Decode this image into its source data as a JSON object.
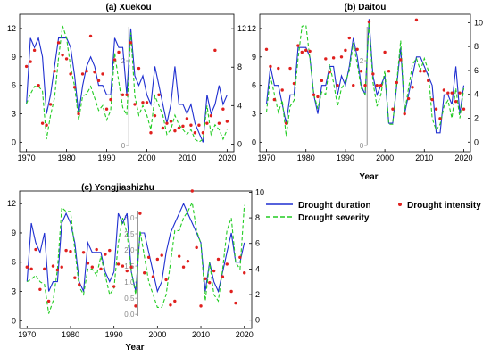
{
  "figure": {
    "legend": {
      "duration_label": "Drought duration",
      "intensity_label": "Drought intensity",
      "severity_label": "Drought severity"
    },
    "colors": {
      "duration": "#1f2fd0",
      "severity": "#22cc22",
      "intensity": "#e0201e",
      "divider": "#8a8a8a"
    }
  },
  "chart_data": [
    {
      "type": "line",
      "title": "(a) Xuekou",
      "xlabel": "",
      "x_ticks": [
        1970,
        1980,
        1990,
        2000,
        2010,
        2020
      ],
      "left_yticks": [
        0,
        3,
        6,
        9,
        12
      ],
      "left_ylim": [
        -1,
        13.5
      ],
      "right_yticks": [
        0,
        4,
        8,
        12
      ],
      "right_ylim": [
        -0.8,
        13.5
      ],
      "inset": {
        "ticks": [
          0,
          2
        ],
        "divider_year": 1995.5,
        "range": [
          0,
          2.8
        ]
      },
      "x": [
        1970,
        1971,
        1972,
        1973,
        1974,
        1975,
        1976,
        1977,
        1978,
        1979,
        1980,
        1981,
        1982,
        1983,
        1984,
        1985,
        1986,
        1987,
        1988,
        1989,
        1990,
        1991,
        1992,
        1993,
        1994,
        1995,
        1996,
        1997,
        1998,
        1999,
        2000,
        2001,
        2002,
        2003,
        2004,
        2005,
        2006,
        2007,
        2008,
        2009,
        2010,
        2011,
        2012,
        2013,
        2014,
        2015,
        2016,
        2017,
        2018,
        2019,
        2020
      ],
      "series": [
        {
          "name": "Drought duration",
          "axis": "left",
          "values": [
            4,
            11,
            10,
            11,
            9,
            3,
            5,
            8,
            11,
            11,
            11,
            10,
            7,
            3,
            6,
            8,
            9,
            8,
            6,
            6,
            5,
            5,
            11,
            10,
            10,
            5,
            12,
            7,
            6,
            7,
            5,
            4,
            8,
            6,
            4,
            2,
            4,
            8,
            4,
            4,
            3,
            4,
            2,
            1,
            0,
            5,
            3,
            4,
            6,
            4,
            5
          ]
        },
        {
          "name": "Drought severity",
          "axis": "right",
          "values": [
            4.2,
            5.2,
            6,
            6,
            5.5,
            0.5,
            3,
            4.8,
            9,
            12.3,
            11,
            8,
            6,
            2.5,
            5,
            5.2,
            6,
            4.8,
            3.5,
            4,
            2.5,
            3.5,
            9.5,
            6.5,
            3.8,
            3,
            11.6,
            5,
            3,
            4,
            3,
            1.5,
            5,
            4,
            3,
            1,
            1.5,
            3,
            2,
            1.5,
            1,
            1.5,
            0.5,
            0.2,
            0.5,
            4,
            1,
            2,
            1.5,
            0.5,
            1.5
          ]
        },
        {
          "name": "Drought intensity",
          "axis": "left",
          "values": [
            8,
            8.5,
            9.7,
            6,
            2,
            1.8,
            4,
            7.5,
            10.5,
            9.2,
            8.8,
            7.2,
            5.8,
            3,
            7.2,
            7.5,
            11.2,
            7.4,
            6.5,
            7.2,
            3.5,
            4.5,
            8.7,
            9.5,
            5,
            5,
            10.5,
            4,
            7.8,
            4.2,
            4.2,
            1,
            2.8,
            5,
            1.5,
            2,
            2.2,
            1.2,
            1.5,
            1.7,
            2.5,
            1.8,
            1,
            1.8,
            1,
            2,
            2.8,
            9.7,
            2,
            3.5,
            2.2
          ]
        }
      ]
    },
    {
      "type": "line",
      "title": "(b) Daitou",
      "xlabel": "Year",
      "x_ticks": [
        1970,
        1980,
        1990,
        2000,
        2010,
        2020
      ],
      "left_yticks": [
        0,
        3,
        6,
        9,
        12
      ],
      "left_ylim": [
        -1,
        13.5
      ],
      "right_yticks": [
        0,
        2,
        4,
        6,
        8,
        10
      ],
      "right_ylim": [
        -0.8,
        10.7
      ],
      "inset": {
        "ticks": [
          0,
          2
        ],
        "divider_year": 1995.5,
        "range": [
          0,
          2.8
        ]
      },
      "x": [
        1970,
        1971,
        1972,
        1973,
        1974,
        1975,
        1976,
        1977,
        1978,
        1979,
        1980,
        1981,
        1982,
        1983,
        1984,
        1985,
        1986,
        1987,
        1988,
        1989,
        1990,
        1991,
        1992,
        1993,
        1994,
        1995,
        1996,
        1997,
        1998,
        1999,
        2000,
        2001,
        2002,
        2003,
        2004,
        2005,
        2006,
        2007,
        2008,
        2009,
        2010,
        2011,
        2012,
        2013,
        2014,
        2015,
        2016,
        2017,
        2018,
        2019,
        2020
      ],
      "series": [
        {
          "name": "Drought duration",
          "axis": "left",
          "values": [
            4,
            8,
            6,
            6,
            4,
            2,
            5,
            5,
            10,
            10,
            10,
            9,
            5,
            3,
            6,
            6,
            8,
            8,
            5,
            7,
            6,
            8,
            11,
            9,
            6,
            5,
            13,
            7,
            5,
            6,
            7,
            2,
            2,
            6,
            10,
            3,
            5,
            7,
            9,
            9,
            8,
            7,
            6,
            1,
            1,
            5,
            5,
            4,
            8,
            3,
            6
          ]
        },
        {
          "name": "Drought severity",
          "axis": "right",
          "values": [
            2.5,
            5.5,
            4,
            2.5,
            3.5,
            0.5,
            3,
            3.5,
            7,
            9.7,
            9.8,
            7,
            4,
            2.8,
            4.2,
            4,
            6.5,
            5,
            3,
            4.5,
            5,
            6,
            8.3,
            6.5,
            4.5,
            4,
            10,
            5,
            3,
            4,
            6,
            1.5,
            1.5,
            5,
            8.5,
            2.5,
            4.5,
            6.5,
            7,
            6,
            7,
            6,
            2,
            1,
            1.5,
            3,
            3.5,
            2,
            4.5,
            2,
            4.5
          ]
        },
        {
          "name": "Drought intensity",
          "axis": "left",
          "values": [
            9.8,
            8,
            4.5,
            7.8,
            5.5,
            2,
            7.8,
            6.2,
            10.2,
            9.5,
            9.7,
            9.6,
            5,
            4.8,
            6.5,
            8.8,
            7.4,
            8.9,
            6,
            9,
            9.7,
            11,
            6,
            9.8,
            7.5,
            6,
            12.7,
            7.2,
            6,
            6,
            9.5,
            7.5,
            3.5,
            6.3,
            8.7,
            3,
            4.6,
            5.8,
            12.9,
            7.5,
            7.5,
            6.5,
            4.5,
            3.5,
            2.5,
            5.5,
            5.2,
            5.2,
            4.3,
            5.2,
            3.5
          ]
        }
      ]
    },
    {
      "type": "line",
      "title": "(c) Yongjiashizhu",
      "xlabel": "Year",
      "x_ticks": [
        1970,
        1980,
        1990,
        2000,
        2010,
        2020
      ],
      "left_yticks": [
        0,
        3,
        6,
        9,
        12
      ],
      "left_ylim": [
        -0.8,
        13.3
      ],
      "right_yticks": [
        0,
        2,
        4,
        6,
        8,
        10
      ],
      "right_ylim": [
        -0.65,
        10.1
      ],
      "inset": {
        "ticks": [
          0.0,
          0.5,
          1.0,
          1.5,
          2.0,
          2.5,
          3.0
        ],
        "divider_year": 1995.5,
        "range": [
          -0.05,
          3.22
        ]
      },
      "x": [
        1970,
        1971,
        1972,
        1973,
        1974,
        1975,
        1976,
        1977,
        1978,
        1979,
        1980,
        1981,
        1982,
        1983,
        1984,
        1985,
        1986,
        1987,
        1988,
        1989,
        1990,
        1991,
        1992,
        1993,
        1994,
        1995,
        1996,
        1997,
        1998,
        1999,
        2000,
        2001,
        2002,
        2003,
        2004,
        2005,
        2006,
        2007,
        2008,
        2009,
        2010,
        2011,
        2012,
        2013,
        2014,
        2015,
        2016,
        2017,
        2018,
        2019,
        2020
      ],
      "series": [
        {
          "name": "Drought duration",
          "axis": "left",
          "values": [
            4,
            10,
            8,
            7,
            9,
            3,
            4,
            4,
            10,
            11,
            10,
            8,
            4,
            3,
            8,
            7,
            7,
            7,
            5,
            4,
            5,
            11,
            10,
            11,
            5,
            3,
            9,
            9,
            7,
            5,
            3,
            4,
            7,
            9,
            10,
            11,
            12,
            11,
            10,
            9,
            8,
            3,
            6,
            4,
            3,
            5,
            7,
            9,
            6,
            6,
            8
          ]
        },
        {
          "name": "Drought severity",
          "axis": "right",
          "values": [
            3,
            3.2,
            3.5,
            3,
            2.8,
            0.5,
            1.5,
            4,
            8.8,
            8.5,
            8.5,
            5.5,
            2.6,
            2,
            4,
            4,
            3.5,
            5,
            3.5,
            2,
            2.5,
            6,
            8,
            6.8,
            3.8,
            2,
            7,
            5,
            3,
            2,
            1,
            1,
            2,
            4.5,
            7,
            7,
            8,
            8.5,
            9.2,
            7,
            6,
            1.5,
            4.5,
            2,
            1.5,
            4,
            7,
            8,
            4.5,
            4,
            9
          ]
        },
        {
          "name": "Drought intensity",
          "axis": "left",
          "values": [
            5.5,
            5.3,
            7.3,
            3.2,
            5.3,
            2,
            5.6,
            5.2,
            5.5,
            7.2,
            7.1,
            4.4,
            3.7,
            7,
            5.9,
            5.5,
            7.3,
            5.3,
            6.8,
            7.2,
            3.5,
            5.8,
            5.6,
            5.1,
            5.5,
            1.5,
            11,
            4.9,
            6.5,
            4.5,
            6.3,
            6.7,
            4.2,
            1.6,
            2,
            6.6,
            5.5,
            6.1,
            13.3,
            7.5,
            1.5,
            4.3,
            3.9,
            5.1,
            6.3,
            4.5,
            5.8,
            3,
            1.8,
            6.5,
            4.9
          ]
        }
      ]
    }
  ]
}
